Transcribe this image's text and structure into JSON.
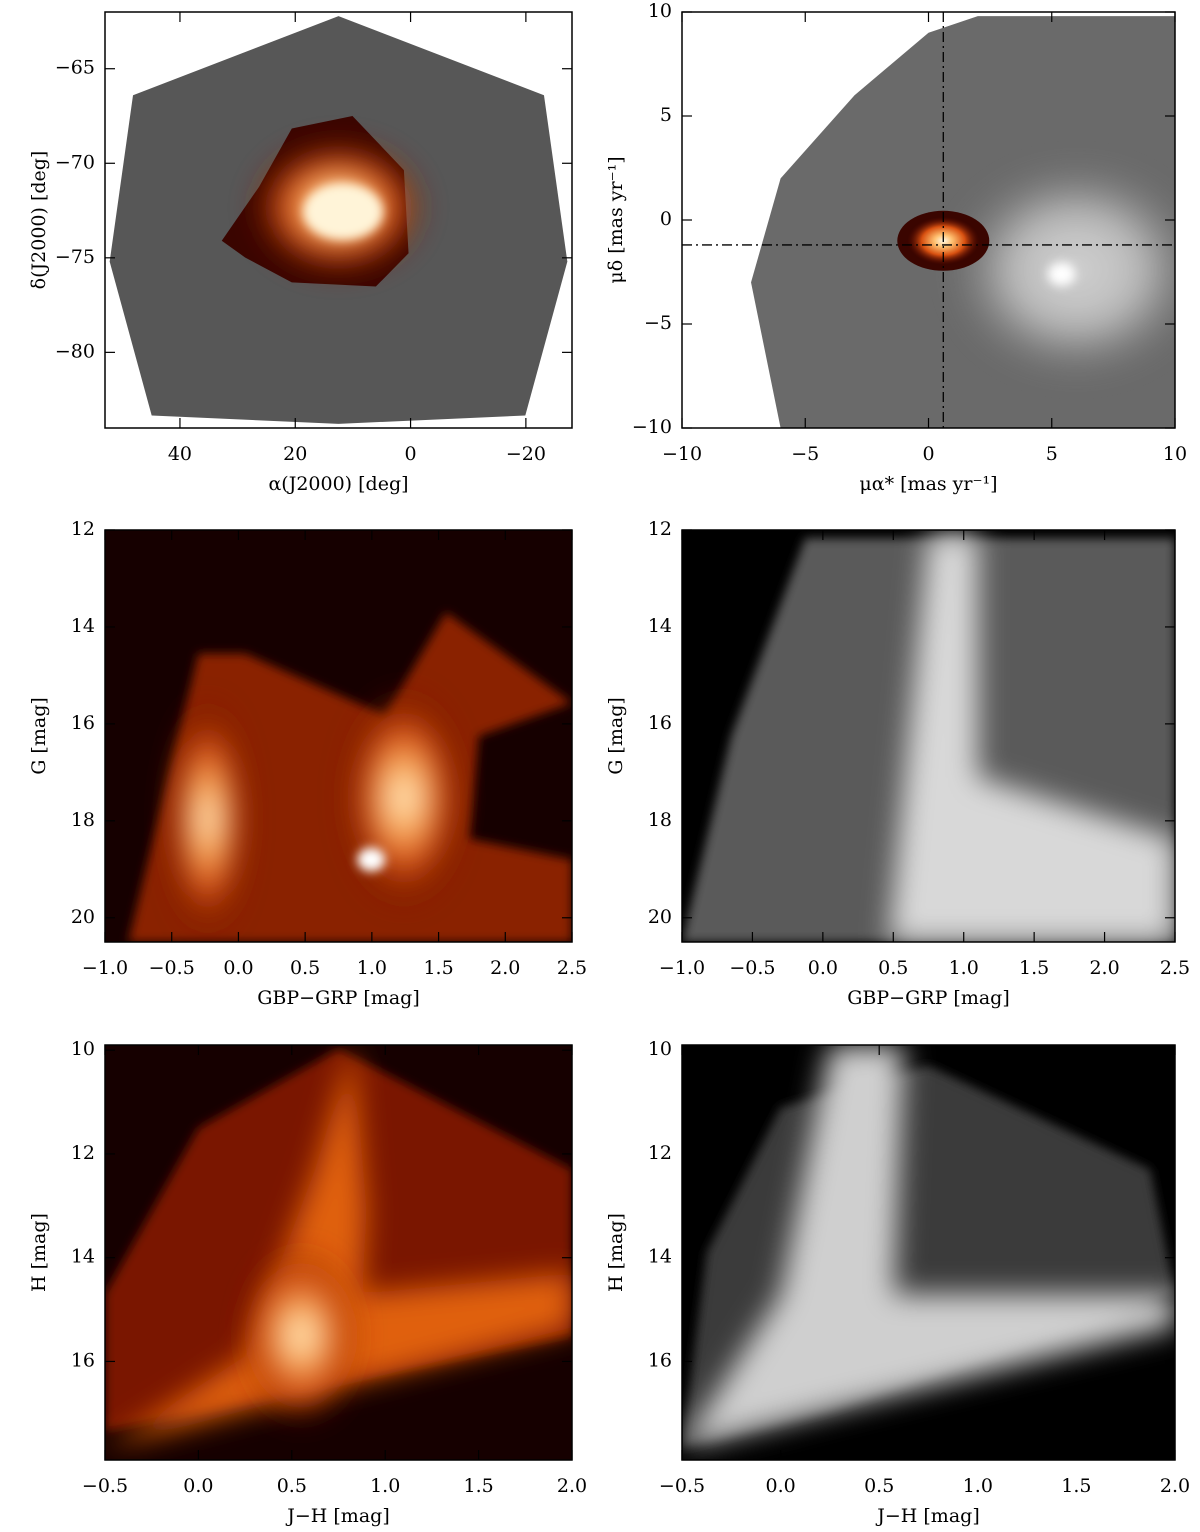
{
  "chart_data": [
    {
      "type": "heatmap",
      "colormap": "hot",
      "x_label": "α(J2000) [deg]",
      "y_label": "δ(J2000) [deg]",
      "xlim": [
        53,
        -28
      ],
      "ylim": [
        -84,
        -62
      ],
      "xticks": [
        40,
        20,
        0,
        {
          "value": -20,
          "label": "−20"
        }
      ],
      "yticks": [
        {
          "value": -65,
          "label": "−65"
        },
        {
          "value": -70,
          "label": "−70"
        },
        {
          "value": -75,
          "label": "−75"
        },
        {
          "value": -80,
          "label": "−80"
        }
      ]
    },
    {
      "type": "heatmap",
      "colormap": "hot",
      "x_label": "μα* [mas yr⁻¹]",
      "y_label": "μδ [mas yr⁻¹]",
      "xlim": [
        -10,
        10
      ],
      "ylim": [
        -10,
        10
      ],
      "xticks": [
        {
          "value": -10,
          "label": "−10"
        },
        {
          "value": -5,
          "label": "−5"
        },
        0,
        5,
        10
      ],
      "yticks": [
        {
          "value": -10,
          "label": "−10"
        },
        {
          "value": -5,
          "label": "−5"
        },
        0,
        5,
        10
      ],
      "reference_lines": {
        "x": 0.6,
        "y": -1.2
      }
    },
    {
      "type": "heatmap",
      "colormap": "hot",
      "x_label": "GBP−GRP [mag]",
      "y_label": "G [mag]",
      "xlim": [
        -1,
        2.5
      ],
      "ylim": [
        20.5,
        12
      ],
      "xticks": [
        {
          "value": -1,
          "label": "−1.0"
        },
        {
          "value": -0.5,
          "label": "−0.5"
        },
        {
          "value": 0,
          "label": "0.0"
        },
        0.5,
        {
          "value": 1,
          "label": "1.0"
        },
        1.5,
        {
          "value": 2,
          "label": "2.0"
        },
        2.5
      ],
      "yticks": [
        12,
        14,
        16,
        18,
        20
      ]
    },
    {
      "type": "heatmap",
      "colormap": "gray",
      "x_label": "GBP−GRP [mag]",
      "y_label": "G [mag]",
      "xlim": [
        -1,
        2.5
      ],
      "ylim": [
        20.5,
        12
      ],
      "xticks": [
        {
          "value": -1,
          "label": "−1.0"
        },
        {
          "value": -0.5,
          "label": "−0.5"
        },
        {
          "value": 0,
          "label": "0.0"
        },
        0.5,
        {
          "value": 1,
          "label": "1.0"
        },
        1.5,
        {
          "value": 2,
          "label": "2.0"
        },
        2.5
      ],
      "yticks": [
        12,
        14,
        16,
        18,
        20
      ]
    },
    {
      "type": "heatmap",
      "colormap": "hot",
      "x_label": "J−H [mag]",
      "y_label": "H [mag]",
      "xlim": [
        -0.5,
        2
      ],
      "ylim": [
        17.9,
        9.9
      ],
      "xticks": [
        {
          "value": -0.5,
          "label": "−0.5"
        },
        {
          "value": 0,
          "label": "0.0"
        },
        0.5,
        {
          "value": 1,
          "label": "1.0"
        },
        1.5,
        {
          "value": 2,
          "label": "2.0"
        }
      ],
      "yticks": [
        10,
        12,
        14,
        16
      ]
    },
    {
      "type": "heatmap",
      "colormap": "gray",
      "x_label": "J−H [mag]",
      "y_label": "H [mag]",
      "xlim": [
        -0.5,
        2
      ],
      "ylim": [
        17.9,
        9.9
      ],
      "xticks": [
        {
          "value": -0.5,
          "label": "−0.5"
        },
        {
          "value": 0,
          "label": "0.0"
        },
        0.5,
        {
          "value": 1,
          "label": "1.0"
        },
        1.5,
        {
          "value": 2,
          "label": "2.0"
        }
      ],
      "yticks": [
        10,
        12,
        14,
        16
      ]
    }
  ]
}
